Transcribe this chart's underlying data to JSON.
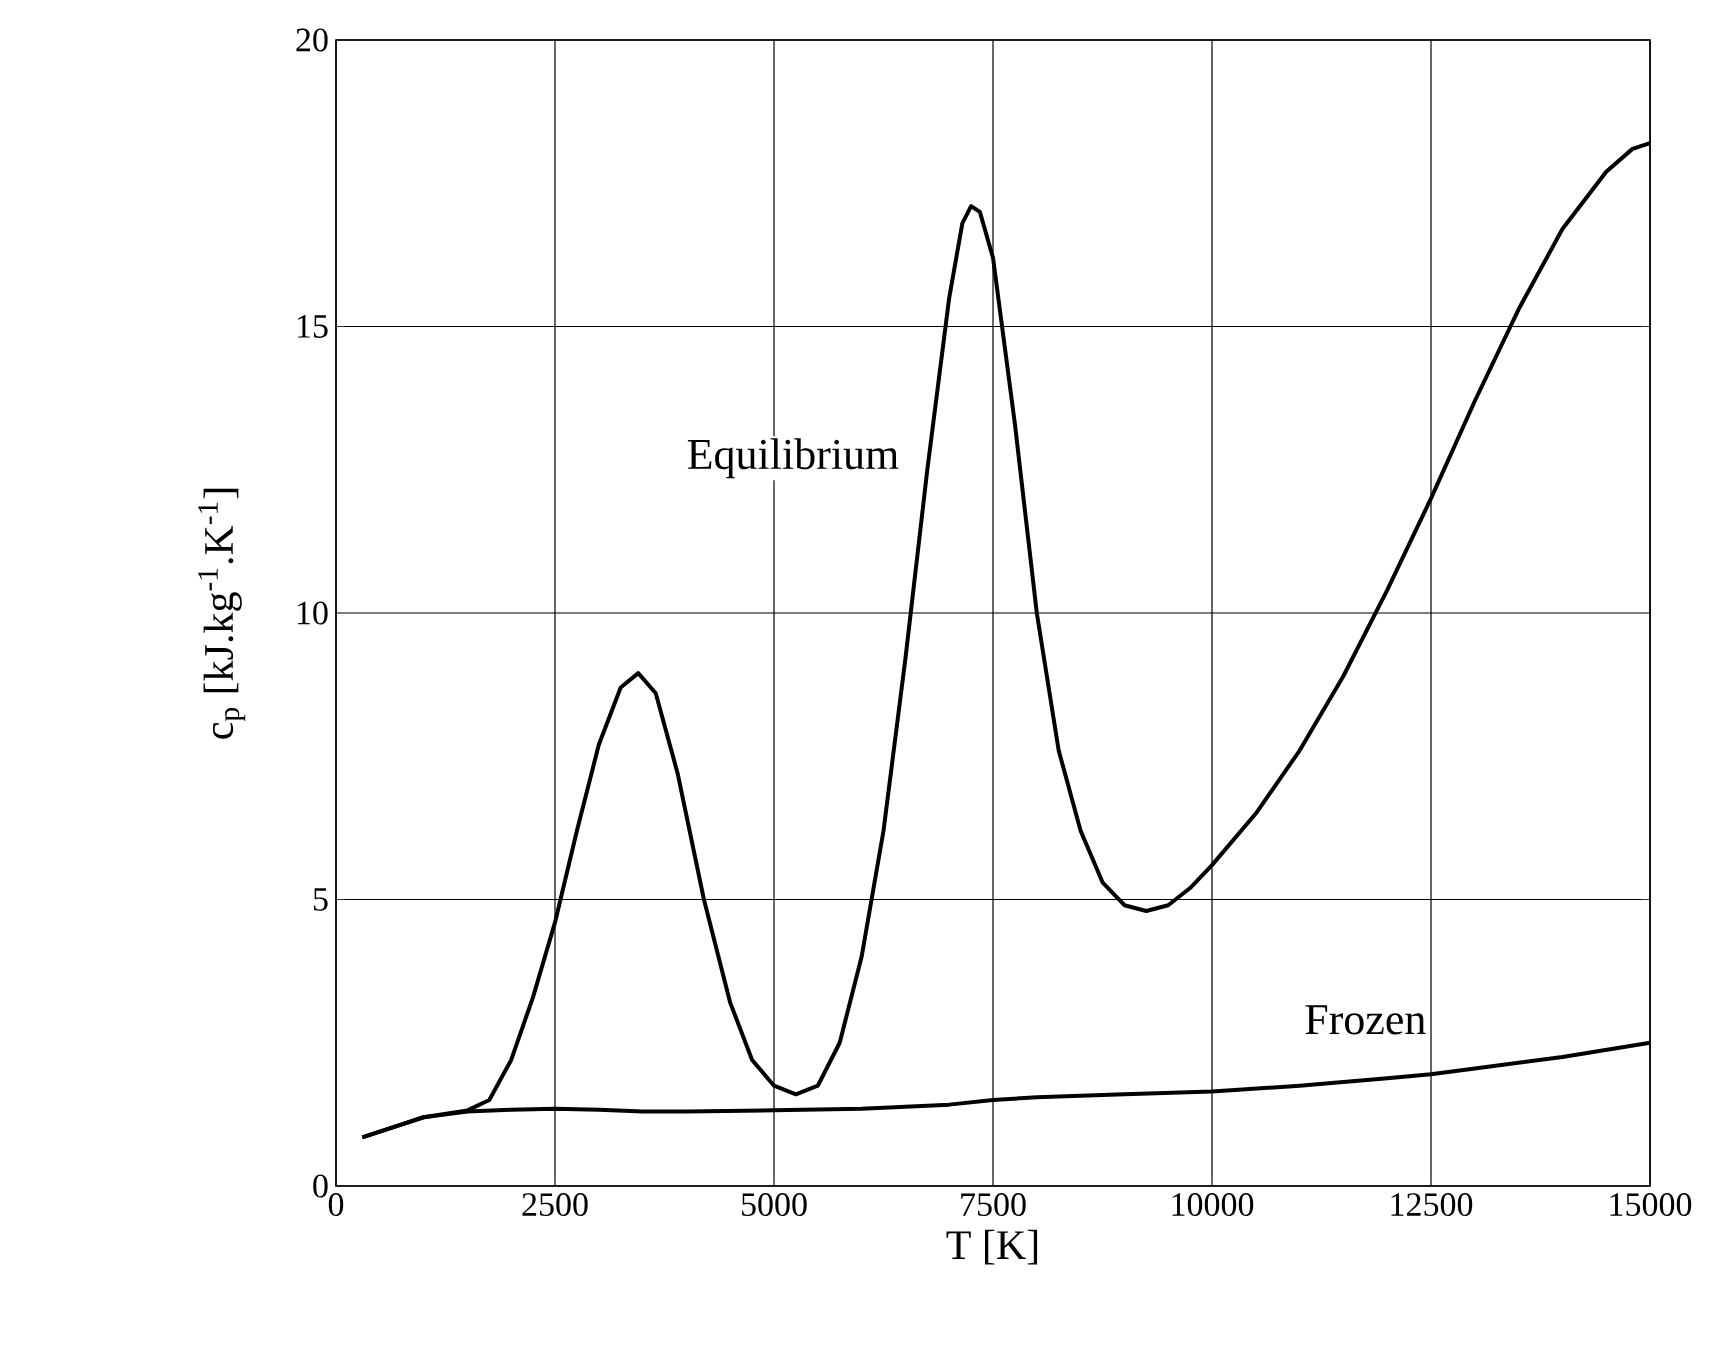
{
  "chart_data": {
    "type": "line",
    "xlabel": "T [K]",
    "ylabel": "c$_{p}$  [kJ.kg$^{-1}$.K$^{-1}$]",
    "xlim": [
      0,
      15000
    ],
    "ylim": [
      0,
      20
    ],
    "xticks": [
      0,
      2500,
      5000,
      7500,
      10000,
      12500,
      15000
    ],
    "yticks": [
      0,
      5,
      10,
      15,
      20
    ],
    "grid": true,
    "marker": "none",
    "line_style": "solid",
    "series": [
      {
        "name": "Equilibrium",
        "color": "#000000",
        "x": [
          300,
          700,
          1000,
          1500,
          1750,
          2000,
          2250,
          2500,
          2750,
          3000,
          3250,
          3450,
          3650,
          3900,
          4200,
          4500,
          4750,
          5000,
          5250,
          5500,
          5750,
          6000,
          6250,
          6500,
          6750,
          7000,
          7150,
          7250,
          7350,
          7500,
          7750,
          8000,
          8250,
          8500,
          8750,
          9000,
          9250,
          9500,
          9750,
          10000,
          10500,
          11000,
          11500,
          12000,
          12500,
          13000,
          13500,
          14000,
          14500,
          14800,
          15000
        ],
        "values": [
          0.85,
          1.05,
          1.2,
          1.32,
          1.5,
          2.2,
          3.3,
          4.6,
          6.2,
          7.7,
          8.7,
          8.95,
          8.6,
          7.2,
          5.0,
          3.2,
          2.2,
          1.75,
          1.6,
          1.75,
          2.5,
          4.0,
          6.2,
          9.2,
          12.5,
          15.5,
          16.8,
          17.1,
          17.0,
          16.2,
          13.3,
          10.0,
          7.6,
          6.2,
          5.3,
          4.9,
          4.8,
          4.9,
          5.2,
          5.6,
          6.5,
          7.6,
          8.9,
          10.4,
          12.0,
          13.7,
          15.3,
          16.7,
          17.7,
          18.1,
          18.2
        ]
      },
      {
        "name": "Frozen",
        "color": "#000000",
        "x": [
          300,
          700,
          1000,
          1500,
          2000,
          2500,
          3000,
          3500,
          4000,
          5000,
          6000,
          7000,
          7500,
          8000,
          9000,
          10000,
          11000,
          12000,
          12500,
          13000,
          14000,
          15000
        ],
        "values": [
          0.85,
          1.05,
          1.2,
          1.3,
          1.33,
          1.35,
          1.33,
          1.3,
          1.3,
          1.32,
          1.35,
          1.42,
          1.5,
          1.55,
          1.6,
          1.65,
          1.75,
          1.88,
          1.95,
          2.05,
          2.25,
          2.5
        ]
      }
    ]
  }
}
